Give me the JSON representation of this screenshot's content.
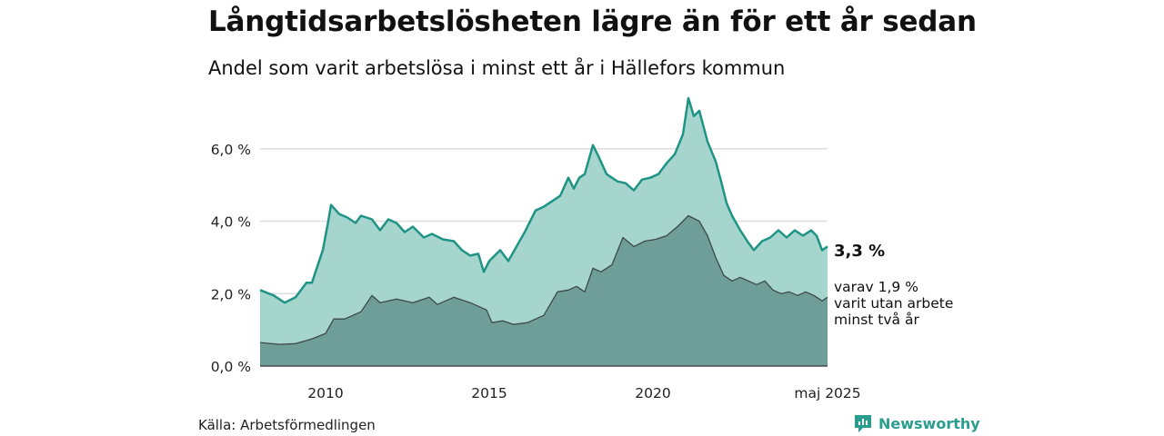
{
  "header": {
    "title": "Långtidsarbetslösheten lägre än för ett år sedan",
    "subtitle": "Andel som varit arbetslösa i minst ett år i Hällefors kommun"
  },
  "footer": {
    "source": "Källa: Arbetsförmedlingen",
    "brand": "Newsworthy"
  },
  "icons": {
    "brand": "newsworthy-logo-icon"
  },
  "colors": {
    "total_line": "#1f9485",
    "total_fill": "#a6d5ce",
    "sub_line": "#3b4a47",
    "sub_fill": "#6f9d97",
    "grid": "#dddddd"
  },
  "chart_data": {
    "type": "area",
    "title": "Långtidsarbetslösheten lägre än för ett år sedan",
    "subtitle": "Andel som varit arbetslösa i minst ett år i Hällefors kommun",
    "xlabel": "",
    "ylabel": "",
    "x_range": [
      "2008-01",
      "2025-05"
    ],
    "ylim": [
      0,
      7.6
    ],
    "y_ticks": [
      0,
      2,
      4,
      6
    ],
    "y_tick_labels": [
      "0,0 %",
      "2,0 %",
      "4,0 %",
      "6,0 %"
    ],
    "x_ticks": [
      "2010-01",
      "2015-01",
      "2020-01",
      "2025-05"
    ],
    "x_tick_labels": [
      "2010",
      "2015",
      "2020",
      "maj 2025"
    ],
    "grid": true,
    "legend": "none",
    "end_labels": {
      "total": "3,3 %",
      "sub": [
        "varav 1,9 %",
        "varit utan arbete",
        "minst två år"
      ]
    },
    "series": [
      {
        "key": "total",
        "points": [
          [
            "2008-01",
            2.1
          ],
          [
            "2008-06",
            1.95
          ],
          [
            "2008-10",
            1.75
          ],
          [
            "2009-02",
            1.9
          ],
          [
            "2009-06",
            2.3
          ],
          [
            "2009-08",
            2.3
          ],
          [
            "2009-12",
            3.2
          ],
          [
            "2010-02",
            4.0
          ],
          [
            "2010-03",
            4.45
          ],
          [
            "2010-06",
            4.2
          ],
          [
            "2010-09",
            4.1
          ],
          [
            "2010-12",
            3.95
          ],
          [
            "2011-02",
            4.15
          ],
          [
            "2011-06",
            4.05
          ],
          [
            "2011-09",
            3.75
          ],
          [
            "2011-12",
            4.05
          ],
          [
            "2012-03",
            3.95
          ],
          [
            "2012-06",
            3.7
          ],
          [
            "2012-09",
            3.85
          ],
          [
            "2013-01",
            3.55
          ],
          [
            "2013-04",
            3.65
          ],
          [
            "2013-08",
            3.5
          ],
          [
            "2013-12",
            3.45
          ],
          [
            "2014-03",
            3.2
          ],
          [
            "2014-06",
            3.05
          ],
          [
            "2014-09",
            3.1
          ],
          [
            "2014-11",
            2.6
          ],
          [
            "2015-01",
            2.9
          ],
          [
            "2015-05",
            3.2
          ],
          [
            "2015-08",
            2.9
          ],
          [
            "2015-11",
            3.3
          ],
          [
            "2016-02",
            3.7
          ],
          [
            "2016-06",
            4.3
          ],
          [
            "2016-09",
            4.4
          ],
          [
            "2016-12",
            4.55
          ],
          [
            "2017-03",
            4.7
          ],
          [
            "2017-06",
            5.2
          ],
          [
            "2017-08",
            4.9
          ],
          [
            "2017-10",
            5.2
          ],
          [
            "2017-12",
            5.3
          ],
          [
            "2018-03",
            6.1
          ],
          [
            "2018-05",
            5.8
          ],
          [
            "2018-08",
            5.3
          ],
          [
            "2018-12",
            5.1
          ],
          [
            "2019-03",
            5.05
          ],
          [
            "2019-06",
            4.85
          ],
          [
            "2019-09",
            5.15
          ],
          [
            "2019-12",
            5.2
          ],
          [
            "2020-03",
            5.3
          ],
          [
            "2020-06",
            5.6
          ],
          [
            "2020-09",
            5.85
          ],
          [
            "2020-12",
            6.4
          ],
          [
            "2021-02",
            7.4
          ],
          [
            "2021-04",
            6.9
          ],
          [
            "2021-06",
            7.05
          ],
          [
            "2021-09",
            6.2
          ],
          [
            "2021-12",
            5.65
          ],
          [
            "2022-02",
            5.1
          ],
          [
            "2022-04",
            4.5
          ],
          [
            "2022-06",
            4.15
          ],
          [
            "2022-09",
            3.75
          ],
          [
            "2022-12",
            3.4
          ],
          [
            "2023-02",
            3.2
          ],
          [
            "2023-05",
            3.45
          ],
          [
            "2023-08",
            3.55
          ],
          [
            "2023-11",
            3.75
          ],
          [
            "2024-02",
            3.55
          ],
          [
            "2024-05",
            3.75
          ],
          [
            "2024-08",
            3.6
          ],
          [
            "2024-11",
            3.75
          ],
          [
            "2025-01",
            3.6
          ],
          [
            "2025-03",
            3.2
          ],
          [
            "2025-05",
            3.3
          ]
        ]
      },
      {
        "key": "sub",
        "points": [
          [
            "2008-01",
            0.65
          ],
          [
            "2008-08",
            0.6
          ],
          [
            "2009-02",
            0.62
          ],
          [
            "2009-08",
            0.75
          ],
          [
            "2010-01",
            0.9
          ],
          [
            "2010-04",
            1.3
          ],
          [
            "2010-08",
            1.3
          ],
          [
            "2011-02",
            1.5
          ],
          [
            "2011-06",
            1.95
          ],
          [
            "2011-09",
            1.75
          ],
          [
            "2012-03",
            1.85
          ],
          [
            "2012-09",
            1.75
          ],
          [
            "2013-03",
            1.9
          ],
          [
            "2013-06",
            1.7
          ],
          [
            "2013-12",
            1.9
          ],
          [
            "2014-06",
            1.75
          ],
          [
            "2014-12",
            1.55
          ],
          [
            "2015-02",
            1.2
          ],
          [
            "2015-06",
            1.25
          ],
          [
            "2015-10",
            1.15
          ],
          [
            "2016-03",
            1.2
          ],
          [
            "2016-06",
            1.3
          ],
          [
            "2016-09",
            1.4
          ],
          [
            "2017-02",
            2.05
          ],
          [
            "2017-06",
            2.1
          ],
          [
            "2017-09",
            2.2
          ],
          [
            "2017-12",
            2.05
          ],
          [
            "2018-03",
            2.7
          ],
          [
            "2018-06",
            2.6
          ],
          [
            "2018-10",
            2.8
          ],
          [
            "2019-02",
            3.55
          ],
          [
            "2019-06",
            3.3
          ],
          [
            "2019-10",
            3.45
          ],
          [
            "2020-02",
            3.5
          ],
          [
            "2020-06",
            3.6
          ],
          [
            "2020-10",
            3.85
          ],
          [
            "2021-02",
            4.15
          ],
          [
            "2021-06",
            4.0
          ],
          [
            "2021-09",
            3.6
          ],
          [
            "2021-12",
            3.0
          ],
          [
            "2022-03",
            2.5
          ],
          [
            "2022-06",
            2.35
          ],
          [
            "2022-09",
            2.45
          ],
          [
            "2022-12",
            2.35
          ],
          [
            "2023-03",
            2.25
          ],
          [
            "2023-06",
            2.35
          ],
          [
            "2023-09",
            2.1
          ],
          [
            "2023-12",
            2.0
          ],
          [
            "2024-03",
            2.05
          ],
          [
            "2024-06",
            1.95
          ],
          [
            "2024-09",
            2.05
          ],
          [
            "2024-12",
            1.95
          ],
          [
            "2025-03",
            1.8
          ],
          [
            "2025-05",
            1.9
          ]
        ]
      }
    ]
  }
}
